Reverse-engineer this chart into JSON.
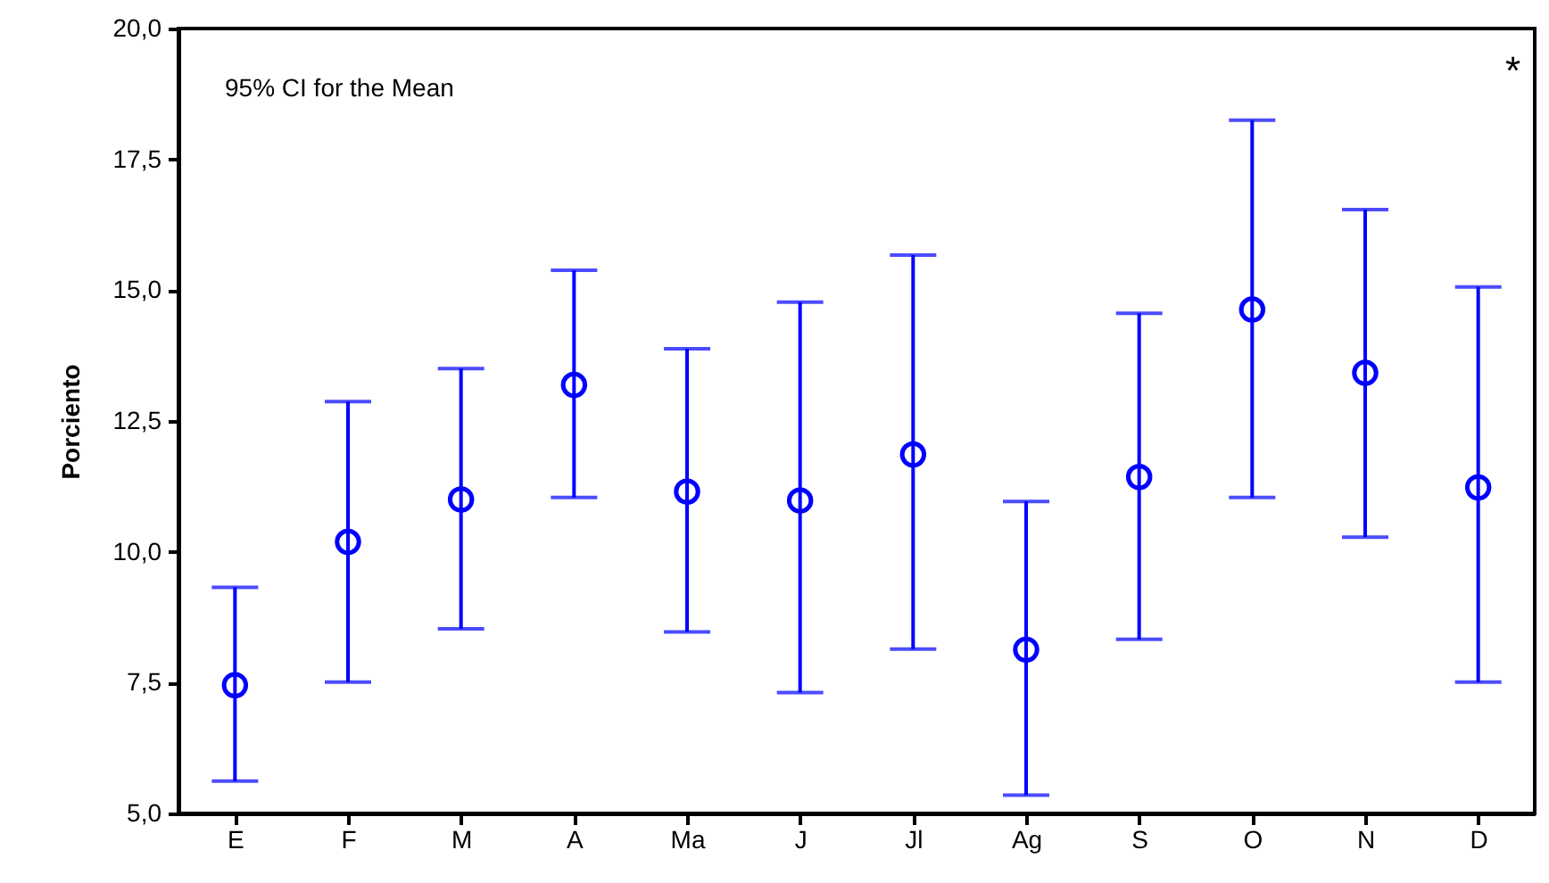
{
  "chart_data": {
    "type": "scatter",
    "ylabel": "Porciento",
    "annotations": [
      "95% CI for the Mean",
      "*"
    ],
    "categories": [
      "E",
      "F",
      "M",
      "A",
      "Ma",
      "J",
      "Jl",
      "Ag",
      "S",
      "O",
      "N",
      "D"
    ],
    "series": [
      {
        "color": "#0000ff",
        "values": [
          7.45,
          10.19,
          11.0,
          13.19,
          11.15,
          10.98,
          11.86,
          8.13,
          11.43,
          14.63,
          13.42,
          11.23
        ],
        "errors": [
          [
            5.62,
            9.32
          ],
          [
            7.51,
            12.87
          ],
          [
            8.53,
            13.5
          ],
          [
            11.04,
            15.38
          ],
          [
            8.47,
            13.88
          ],
          [
            7.31,
            14.77
          ],
          [
            8.14,
            15.67
          ],
          [
            5.35,
            10.96
          ],
          [
            8.33,
            14.56
          ],
          [
            11.04,
            18.25
          ],
          [
            10.28,
            16.54
          ],
          [
            7.51,
            15.06
          ]
        ]
      }
    ],
    "ylim": [
      5,
      20
    ],
    "yticks": [
      {
        "value": 5,
        "label": "5,0"
      },
      {
        "value": 7.5,
        "label": "7,5"
      },
      {
        "value": 10,
        "label": "10,0"
      },
      {
        "value": 12.5,
        "label": "12,5"
      },
      {
        "value": 15,
        "label": "15,0"
      },
      {
        "value": 17.5,
        "label": "17,5"
      },
      {
        "value": 20,
        "label": "20,0"
      }
    ],
    "marker": "circle",
    "grid": false
  }
}
